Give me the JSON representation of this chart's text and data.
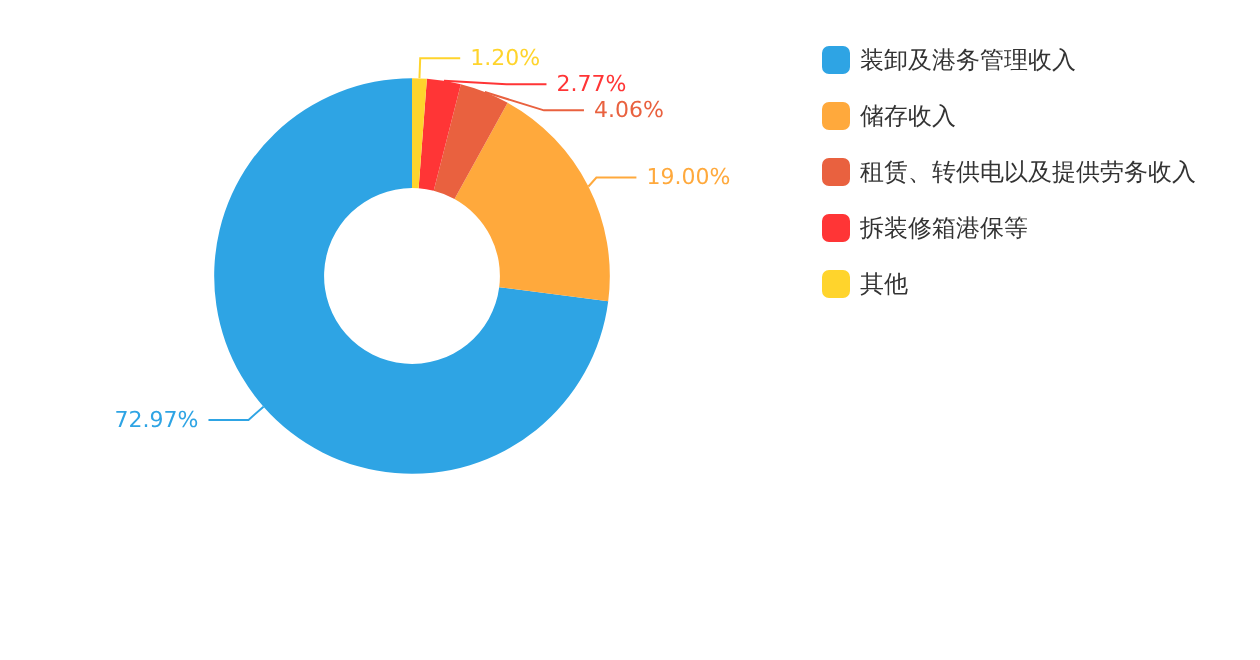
{
  "chart_data": {
    "type": "donut",
    "categories": [
      "装卸及港务管理收入",
      "储存收入",
      "租赁、转供电以及提供劳务收入",
      "拆装修箱港保等",
      "其他"
    ],
    "values": [
      72.97,
      19.0,
      4.06,
      2.77,
      1.2
    ],
    "value_labels": [
      "72.97%",
      "19.00%",
      "4.06%",
      "2.77%",
      "1.20%"
    ],
    "colors": [
      "#2ea4e4",
      "#ffa93c",
      "#e9613f",
      "#ff3536",
      "#ffd42c"
    ],
    "legend": "right"
  }
}
